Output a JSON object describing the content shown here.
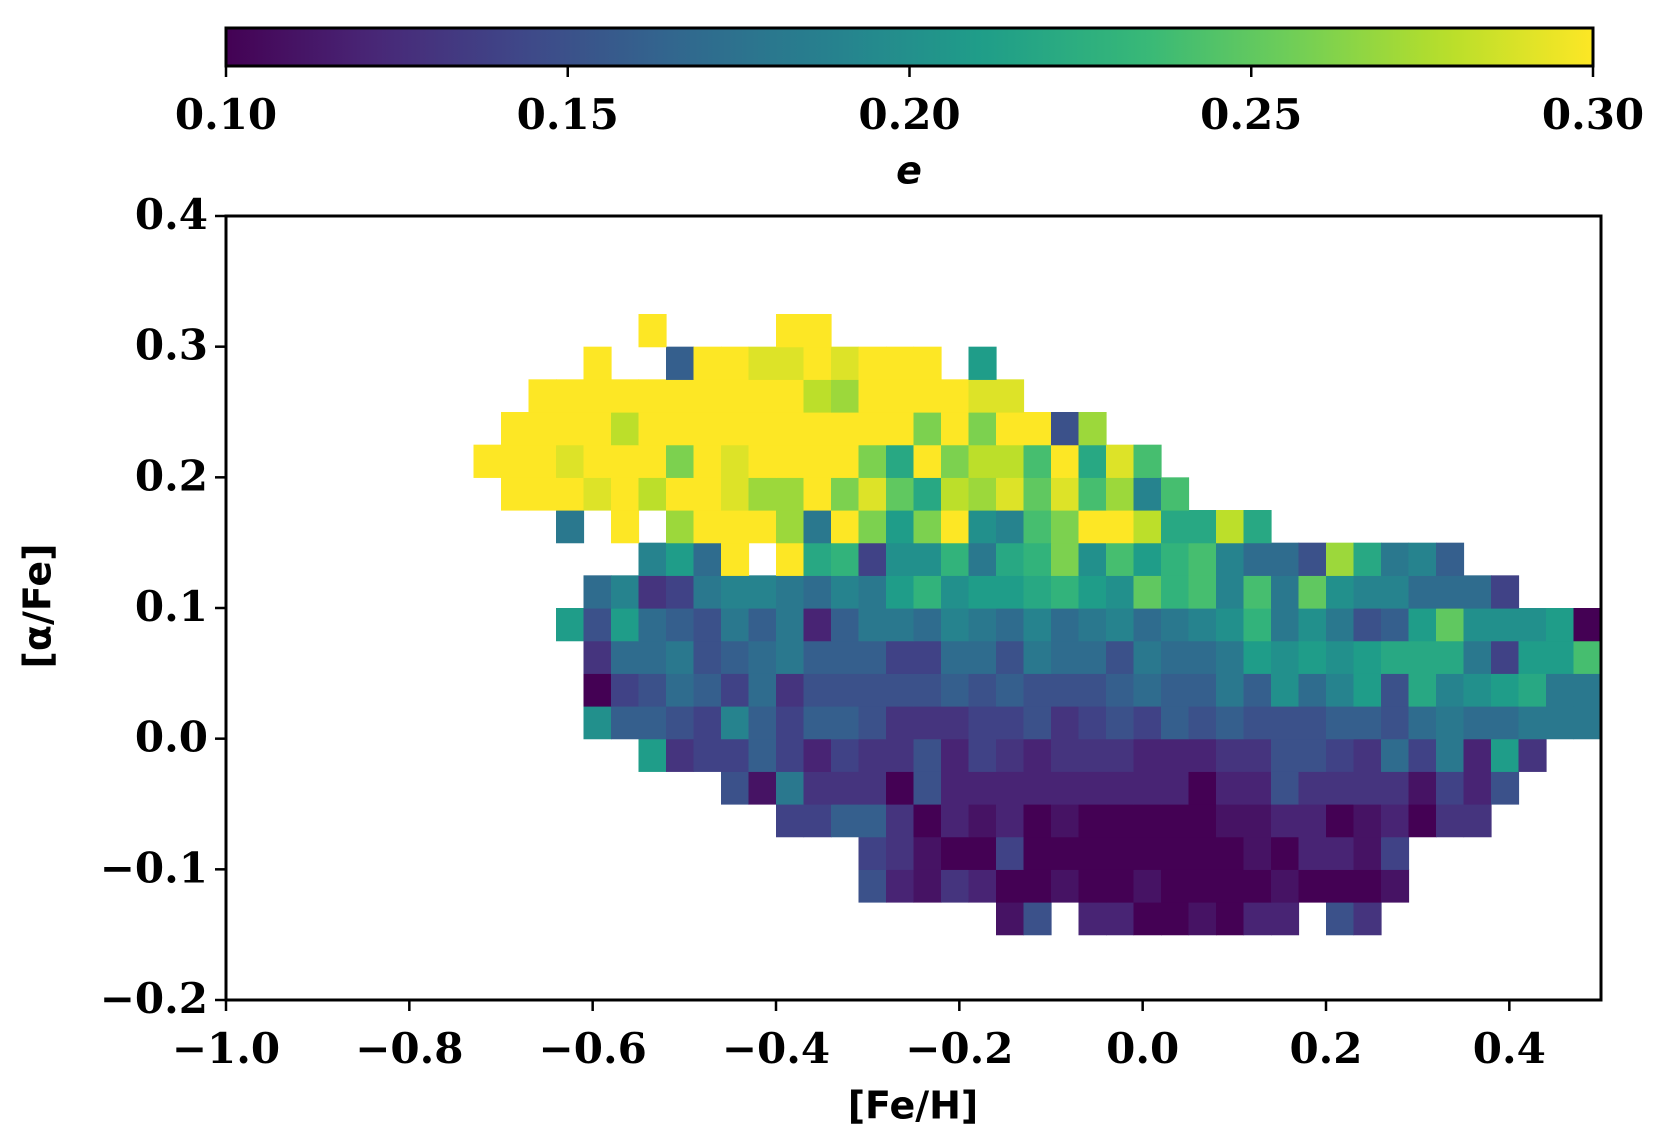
{
  "chart_data": {
    "type": "heatmap",
    "x_label": "[Fe/H]",
    "y_label": "[α/Fe]",
    "colorbar_label": "e",
    "cmap": "viridis",
    "clim": [
      0.1,
      0.3
    ],
    "colorbar_ticks": [
      {
        "value": 0.1,
        "label": "0.10"
      },
      0.15,
      {
        "value": 0.2,
        "label": "0.20"
      },
      0.25,
      {
        "value": 0.3,
        "label": "0.30"
      }
    ],
    "xlim": [
      -1.0,
      0.5
    ],
    "xticks": [
      {
        "value": -1.0,
        "label": "−1.0"
      },
      {
        "value": -0.8,
        "label": "−0.8"
      },
      {
        "value": -0.6,
        "label": "−0.6"
      },
      {
        "value": -0.4,
        "label": "−0.4"
      },
      {
        "value": -0.2,
        "label": "−0.2"
      },
      {
        "value": 0,
        "label": "0.0"
      },
      0.2,
      0.4
    ],
    "ylim": [
      -0.2,
      0.4
    ],
    "yticks": [
      {
        "value": -0.2,
        "label": "−0.2"
      },
      {
        "value": -0.1,
        "label": "−0.1"
      },
      {
        "value": 0,
        "label": "0.0"
      },
      0.1,
      0.2,
      0.3,
      0.4
    ],
    "x_bins": [
      -0.73,
      -0.7,
      -0.67,
      -0.64,
      -0.61,
      -0.58,
      -0.55,
      -0.52,
      -0.49,
      -0.46,
      -0.43,
      -0.4,
      -0.37,
      -0.34,
      -0.31,
      -0.28,
      -0.25,
      -0.22,
      -0.19,
      -0.16,
      -0.13,
      -0.1,
      -0.07,
      -0.04,
      -0.01,
      0.02,
      0.05,
      0.08,
      0.11,
      0.14,
      0.17,
      0.2,
      0.23,
      0.26,
      0.29,
      0.32,
      0.35,
      0.38,
      0.41,
      0.44,
      0.47,
      0.5
    ],
    "y_bins": [
      -0.15,
      -0.125,
      -0.1,
      -0.075,
      -0.05,
      -0.025,
      0,
      0.025,
      0.05,
      0.075,
      0.1,
      0.125,
      0.15,
      0.175,
      0.2,
      0.225,
      0.25,
      0.275,
      0.3,
      0.325
    ],
    "z": [
      [
        null,
        null,
        null,
        null,
        null,
        null,
        null,
        null,
        null,
        null,
        null,
        null,
        null,
        null,
        null,
        null,
        null,
        null,
        null,
        0.11,
        0.15,
        null,
        0.12,
        0.12,
        0.1,
        0.1,
        0.11,
        0.1,
        0.12,
        0.12,
        null,
        0.15,
        0.13,
        null,
        null,
        null,
        null,
        null,
        null,
        null,
        null
      ],
      [
        null,
        null,
        null,
        null,
        null,
        null,
        null,
        null,
        null,
        null,
        null,
        null,
        null,
        null,
        0.15,
        0.12,
        0.11,
        0.13,
        0.12,
        0.1,
        0.1,
        0.11,
        0.1,
        0.1,
        0.11,
        0.1,
        0.1,
        0.1,
        0.1,
        0.11,
        0.1,
        0.1,
        0.1,
        0.11,
        null,
        null,
        null,
        null,
        null,
        null,
        null
      ],
      [
        null,
        null,
        null,
        null,
        null,
        null,
        null,
        null,
        null,
        null,
        null,
        null,
        null,
        null,
        0.14,
        0.13,
        0.11,
        0.1,
        0.1,
        0.14,
        0.1,
        0.1,
        0.1,
        0.1,
        0.1,
        0.1,
        0.1,
        0.1,
        0.11,
        0.1,
        0.12,
        0.12,
        0.11,
        0.14,
        null,
        null,
        null,
        null,
        null,
        null,
        null
      ],
      [
        null,
        null,
        null,
        null,
        null,
        null,
        null,
        null,
        null,
        null,
        null,
        0.14,
        0.14,
        0.16,
        0.16,
        0.13,
        0.1,
        0.12,
        0.11,
        0.12,
        0.1,
        0.11,
        0.1,
        0.1,
        0.1,
        0.1,
        0.1,
        0.11,
        0.11,
        0.12,
        0.12,
        0.1,
        0.11,
        0.12,
        0.1,
        0.13,
        0.13,
        null,
        null,
        null,
        null
      ],
      [
        null,
        null,
        null,
        null,
        null,
        null,
        null,
        null,
        null,
        0.15,
        0.11,
        0.18,
        0.13,
        0.13,
        0.13,
        0.1,
        0.15,
        0.12,
        0.12,
        0.12,
        0.12,
        0.12,
        0.12,
        0.12,
        0.12,
        0.12,
        0.1,
        0.12,
        0.12,
        0.15,
        0.13,
        0.13,
        0.13,
        0.13,
        0.11,
        0.14,
        0.12,
        0.15,
        null,
        null,
        null
      ],
      [
        null,
        null,
        null,
        null,
        null,
        null,
        0.21,
        0.13,
        0.14,
        0.14,
        0.16,
        0.14,
        0.12,
        0.14,
        0.13,
        0.13,
        0.15,
        0.12,
        0.14,
        0.13,
        0.12,
        0.13,
        0.13,
        0.13,
        0.12,
        0.12,
        0.12,
        0.13,
        0.13,
        0.15,
        0.15,
        0.14,
        0.13,
        0.17,
        0.14,
        0.18,
        0.12,
        0.21,
        0.13,
        null,
        null
      ],
      [
        null,
        null,
        null,
        null,
        0.2,
        0.16,
        0.16,
        0.15,
        0.14,
        0.19,
        0.16,
        0.14,
        0.16,
        0.16,
        0.15,
        0.13,
        0.13,
        0.13,
        0.14,
        0.14,
        0.15,
        0.13,
        0.14,
        0.15,
        0.14,
        0.16,
        0.15,
        0.16,
        0.15,
        0.15,
        0.15,
        0.16,
        0.16,
        0.15,
        0.17,
        0.18,
        0.17,
        0.17,
        0.18,
        0.18,
        0.18
      ],
      [
        null,
        null,
        null,
        null,
        0.1,
        0.14,
        0.15,
        0.17,
        0.16,
        0.14,
        0.17,
        0.13,
        0.15,
        0.15,
        0.15,
        0.15,
        0.15,
        0.16,
        0.15,
        0.16,
        0.15,
        0.15,
        0.15,
        0.16,
        0.17,
        0.16,
        0.16,
        0.18,
        0.16,
        0.2,
        0.17,
        0.19,
        0.21,
        0.15,
        0.22,
        0.19,
        0.2,
        0.21,
        0.22,
        0.18,
        0.18
      ],
      [
        null,
        null,
        null,
        null,
        0.13,
        0.17,
        0.17,
        0.18,
        0.15,
        0.16,
        0.17,
        0.18,
        0.16,
        0.16,
        0.16,
        0.14,
        0.14,
        0.17,
        0.17,
        0.15,
        0.18,
        0.17,
        0.17,
        0.15,
        0.18,
        0.17,
        0.17,
        0.18,
        0.21,
        0.2,
        0.21,
        0.2,
        0.21,
        0.22,
        0.22,
        0.22,
        0.18,
        0.14,
        0.21,
        0.21,
        0.24
      ],
      [
        null,
        null,
        null,
        0.21,
        0.15,
        0.21,
        0.17,
        0.16,
        0.15,
        0.18,
        0.16,
        0.18,
        0.12,
        0.16,
        0.18,
        0.18,
        0.17,
        0.19,
        0.18,
        0.17,
        0.19,
        0.17,
        0.18,
        0.19,
        0.17,
        0.18,
        0.19,
        0.2,
        0.23,
        0.18,
        0.2,
        0.18,
        0.15,
        0.16,
        0.21,
        0.25,
        0.2,
        0.2,
        0.2,
        0.21,
        0.1
      ],
      [
        null,
        null,
        null,
        null,
        0.17,
        0.19,
        0.13,
        0.14,
        0.18,
        0.19,
        0.19,
        0.18,
        0.17,
        0.19,
        0.18,
        0.21,
        0.23,
        0.2,
        0.21,
        0.21,
        0.22,
        0.23,
        0.21,
        0.2,
        0.25,
        0.23,
        0.24,
        0.19,
        0.24,
        0.18,
        0.25,
        0.2,
        0.19,
        0.19,
        0.17,
        0.17,
        0.17,
        0.14,
        null,
        null,
        null
      ],
      [
        null,
        null,
        null,
        null,
        null,
        null,
        0.19,
        0.21,
        0.17,
        0.3,
        null,
        0.3,
        0.22,
        0.23,
        0.14,
        0.2,
        0.2,
        0.23,
        0.18,
        0.22,
        0.23,
        0.26,
        0.2,
        0.24,
        0.21,
        0.23,
        0.24,
        0.19,
        0.17,
        0.17,
        0.15,
        0.27,
        0.22,
        0.18,
        0.19,
        0.16,
        null,
        null,
        null,
        null,
        null
      ],
      [
        null,
        null,
        null,
        0.18,
        null,
        0.3,
        null,
        0.27,
        0.3,
        0.3,
        0.3,
        0.27,
        0.18,
        0.3,
        0.26,
        0.21,
        0.26,
        0.3,
        0.2,
        0.19,
        0.24,
        0.26,
        0.3,
        0.3,
        0.28,
        0.22,
        0.22,
        0.28,
        0.22,
        null,
        null,
        null,
        null,
        null,
        null,
        null,
        null,
        null,
        null,
        null,
        null
      ],
      [
        null,
        0.3,
        0.3,
        0.3,
        0.29,
        0.3,
        0.28,
        0.3,
        0.3,
        0.29,
        0.27,
        0.27,
        0.3,
        0.26,
        0.29,
        0.25,
        0.22,
        0.28,
        0.27,
        0.29,
        0.25,
        0.29,
        0.24,
        0.27,
        0.19,
        0.24,
        null,
        null,
        null,
        null,
        null,
        null,
        null,
        null,
        null,
        null,
        null,
        null,
        null,
        null,
        null
      ],
      [
        0.3,
        0.3,
        0.3,
        0.29,
        0.3,
        0.3,
        0.3,
        0.26,
        0.3,
        0.29,
        0.3,
        0.3,
        0.3,
        0.3,
        0.26,
        0.22,
        0.3,
        0.26,
        0.28,
        0.28,
        0.24,
        0.3,
        0.22,
        0.29,
        0.24,
        null,
        null,
        null,
        null,
        null,
        null,
        null,
        null,
        null,
        null,
        null,
        null,
        null,
        null,
        null,
        null
      ],
      [
        null,
        0.3,
        0.3,
        0.3,
        0.3,
        0.28,
        0.3,
        0.3,
        0.3,
        0.3,
        0.3,
        0.3,
        0.3,
        0.3,
        0.3,
        0.3,
        0.26,
        0.3,
        0.26,
        0.3,
        0.3,
        0.15,
        0.27,
        null,
        null,
        null,
        null,
        null,
        null,
        null,
        null,
        null,
        null,
        null,
        null,
        null,
        null,
        null,
        null,
        null,
        null
      ],
      [
        null,
        null,
        0.3,
        0.3,
        0.3,
        0.3,
        0.3,
        0.3,
        0.3,
        0.3,
        0.3,
        0.3,
        0.28,
        0.27,
        0.3,
        0.3,
        0.3,
        0.3,
        0.29,
        0.29,
        null,
        null,
        null,
        null,
        null,
        null,
        null,
        null,
        null,
        null,
        null,
        null,
        null,
        null,
        null,
        null,
        null,
        null,
        null,
        null,
        null
      ],
      [
        null,
        null,
        null,
        null,
        0.3,
        null,
        null,
        0.16,
        0.3,
        0.3,
        0.29,
        0.29,
        0.3,
        0.29,
        0.3,
        0.3,
        0.3,
        null,
        0.21,
        null,
        null,
        null,
        null,
        null,
        null,
        null,
        null,
        null,
        null,
        null,
        null,
        null,
        null,
        null,
        null,
        null,
        null,
        null,
        null,
        null,
        null
      ],
      [
        null,
        null,
        null,
        null,
        null,
        null,
        0.3,
        null,
        null,
        null,
        null,
        0.3,
        0.3,
        null,
        null,
        null,
        null,
        null,
        null,
        null,
        null,
        null,
        null,
        null,
        null,
        null,
        null,
        null,
        null,
        null,
        null,
        null,
        null,
        null,
        null,
        null,
        null,
        null,
        null,
        null,
        null
      ]
    ]
  }
}
